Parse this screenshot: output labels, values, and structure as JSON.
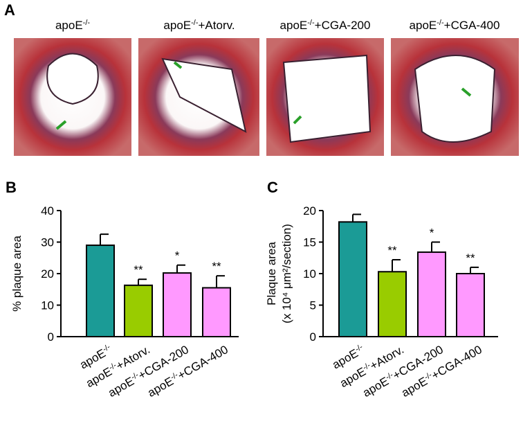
{
  "panel_a": {
    "label": "A",
    "captions": [
      "apoE-/-",
      "apoE-/-+Atorv.",
      "apoE-/-+CGA-200",
      "apoE-/-+CGA-400"
    ]
  },
  "chart_data": [
    {
      "type": "bar",
      "panel": "B",
      "ylabel": [
        "% plaque area"
      ],
      "categories": [
        "apoE-/-",
        "apoE-/-+Atorv.",
        "apoE-/-+CGA-200",
        "apoE-/-+CGA-400"
      ],
      "values": [
        29.0,
        16.3,
        20.2,
        15.5
      ],
      "errors": [
        3.5,
        1.9,
        2.5,
        3.8
      ],
      "significance": [
        null,
        "**",
        "*",
        "**"
      ],
      "colors": [
        "#1b9b96",
        "#99cc00",
        "#ff99ff",
        "#ff99ff"
      ],
      "ylim": [
        0,
        40
      ],
      "yticks": [
        0,
        10,
        20,
        30,
        40
      ]
    },
    {
      "type": "bar",
      "panel": "C",
      "ylabel": [
        "Plaque area",
        "(x 10⁴ μm²/section)"
      ],
      "categories": [
        "apoE-/-",
        "apoE-/-+Atorv.",
        "apoE-/-+CGA-200",
        "apoE-/-+CGA-400"
      ],
      "values": [
        18.2,
        10.3,
        13.4,
        10.0
      ],
      "errors": [
        1.2,
        1.9,
        1.6,
        1.0
      ],
      "significance": [
        null,
        "**",
        "*",
        "**"
      ],
      "colors": [
        "#1b9b96",
        "#99cc00",
        "#ff99ff",
        "#ff99ff"
      ],
      "ylim": [
        0,
        20
      ],
      "yticks": [
        0,
        5,
        10,
        15,
        20
      ]
    }
  ]
}
